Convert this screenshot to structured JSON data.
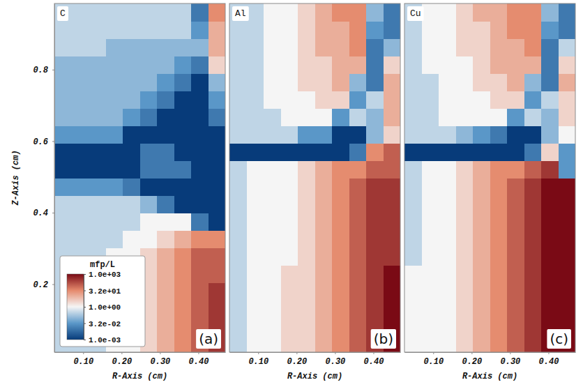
{
  "chart_data": [
    {
      "type": "heatmap",
      "title": "C",
      "panel_label": "(a)",
      "x_label": "R-Axis (cm)",
      "y_label": "Z-Axis (cm)",
      "xlim": [
        0.025,
        0.47
      ],
      "ylim": [
        0.01,
        0.985
      ],
      "xticks": [
        {
          "value": 0.1,
          "label": "0.10"
        },
        {
          "value": 0.2,
          "label": "0.20"
        },
        {
          "value": 0.3,
          "label": "0.30"
        },
        {
          "value": 0.4,
          "label": "0.40"
        }
      ],
      "yticks": [
        0.2,
        0.4,
        0.6,
        0.8
      ],
      "x_edges": [
        0.025,
        0.0695,
        0.114,
        0.1585,
        0.203,
        0.2475,
        0.292,
        0.3365,
        0.381,
        0.4255,
        0.47
      ],
      "y_edges": [
        0.01,
        0.05875,
        0.1075,
        0.15625,
        0.205,
        0.25375,
        0.3025,
        0.35125,
        0.4,
        0.44875,
        0.4975,
        0.54625,
        0.595,
        0.64375,
        0.6925,
        0.74125,
        0.79,
        0.83875,
        0.8875,
        0.93625,
        0.985
      ],
      "cells": [
        [
          0.3,
          0.3,
          0.3,
          1,
          1,
          3,
          10,
          30,
          100,
          300
        ],
        [
          0.3,
          0.3,
          0.3,
          1,
          1,
          3,
          10,
          30,
          100,
          300
        ],
        [
          0.3,
          0.3,
          0.3,
          1,
          1,
          3,
          10,
          30,
          100,
          300
        ],
        [
          0.3,
          0.3,
          0.3,
          1,
          1,
          3,
          10,
          30,
          100,
          300
        ],
        [
          0.3,
          0.3,
          0.3,
          1,
          1,
          3,
          10,
          30,
          100,
          100
        ],
        [
          0.3,
          0.3,
          0.3,
          1,
          1,
          3,
          10,
          30,
          100,
          100
        ],
        [
          0.3,
          0.3,
          0.3,
          0.3,
          1,
          1,
          3,
          10,
          30,
          30
        ],
        [
          0.3,
          0.3,
          0.3,
          0.3,
          0.3,
          1,
          1,
          1,
          0.01,
          0.001
        ],
        [
          0.3,
          0.3,
          0.3,
          0.3,
          0.3,
          0.1,
          0.01,
          0.001,
          0.001,
          0.001
        ],
        [
          0.03,
          0.03,
          0.03,
          0.03,
          0.01,
          0.001,
          0.001,
          0.001,
          0.001,
          0.001
        ],
        [
          0.001,
          0.001,
          0.001,
          0.001,
          0.001,
          0.01,
          0.01,
          0.01,
          0.001,
          0.001
        ],
        [
          0.001,
          0.001,
          0.001,
          0.001,
          0.001,
          0.01,
          0.01,
          0.001,
          0.001,
          0.001
        ],
        [
          0.03,
          0.03,
          0.03,
          0.03,
          0.001,
          0.001,
          0.001,
          0.001,
          0.001,
          0.001
        ],
        [
          0.1,
          0.1,
          0.1,
          0.1,
          0.03,
          0.01,
          0.001,
          0.001,
          0.001,
          0.01
        ],
        [
          0.1,
          0.1,
          0.1,
          0.1,
          0.1,
          0.03,
          0.01,
          0.001,
          0.001,
          0.03
        ],
        [
          0.1,
          0.1,
          0.1,
          0.1,
          0.1,
          0.1,
          0.03,
          0.01,
          0.001,
          0.1
        ],
        [
          0.1,
          0.1,
          0.1,
          0.1,
          0.1,
          0.1,
          0.1,
          0.03,
          0.01,
          3
        ],
        [
          0.3,
          0.3,
          0.3,
          0.1,
          0.1,
          0.1,
          0.1,
          0.1,
          0.1,
          10
        ],
        [
          0.3,
          0.3,
          0.3,
          0.3,
          0.3,
          0.3,
          0.3,
          0.3,
          0.03,
          10
        ],
        [
          0.3,
          0.3,
          0.3,
          0.3,
          0.3,
          0.3,
          0.3,
          0.3,
          0.01,
          30
        ]
      ],
      "colorbar": {
        "title": "mfp/L",
        "range": [
          0.001,
          1000
        ],
        "log": true,
        "ticks": [
          {
            "value": 1000,
            "label": "1.0e+03"
          },
          {
            "value": 31.62,
            "label": "3.2e+01"
          },
          {
            "value": 1,
            "label": "1.0e+00"
          },
          {
            "value": 0.03162,
            "label": "3.2e-02"
          },
          {
            "value": 0.001,
            "label": "1.0e-03"
          }
        ]
      }
    },
    {
      "type": "heatmap",
      "title": "Al",
      "panel_label": "(b)",
      "x_label": "R-Axis (cm)",
      "tick_labels": "x",
      "xlim": [
        0.025,
        0.47
      ],
      "ylim": [
        0.01,
        0.985
      ],
      "xticks": [
        {
          "value": 0.1,
          "label": "0.10"
        },
        {
          "value": 0.2,
          "label": "0.20"
        },
        {
          "value": 0.3,
          "label": "0.30"
        },
        {
          "value": 0.4,
          "label": "0.40"
        }
      ],
      "x_edges": [
        0.025,
        0.0695,
        0.114,
        0.1585,
        0.203,
        0.2475,
        0.292,
        0.3365,
        0.381,
        0.4255,
        0.47
      ],
      "y_edges": [
        0.01,
        0.05875,
        0.1075,
        0.15625,
        0.205,
        0.25375,
        0.3025,
        0.35125,
        0.4,
        0.44875,
        0.4975,
        0.54625,
        0.595,
        0.64375,
        0.6925,
        0.74125,
        0.79,
        0.83875,
        0.8875,
        0.93625,
        0.985
      ],
      "cells": [
        [
          0.3,
          1,
          1,
          3,
          3,
          10,
          30,
          100,
          300,
          1000
        ],
        [
          0.3,
          1,
          1,
          3,
          3,
          10,
          30,
          100,
          300,
          1000
        ],
        [
          0.3,
          1,
          1,
          3,
          3,
          10,
          30,
          100,
          300,
          1000
        ],
        [
          0.3,
          1,
          1,
          3,
          3,
          10,
          30,
          100,
          300,
          1000
        ],
        [
          0.3,
          1,
          1,
          3,
          3,
          10,
          30,
          100,
          300,
          1000
        ],
        [
          0.3,
          1,
          1,
          1,
          3,
          10,
          30,
          100,
          300,
          300
        ],
        [
          0.3,
          1,
          1,
          1,
          3,
          10,
          30,
          100,
          300,
          300
        ],
        [
          0.3,
          1,
          1,
          1,
          3,
          10,
          30,
          100,
          300,
          300
        ],
        [
          0.3,
          1,
          1,
          1,
          3,
          10,
          30,
          100,
          300,
          300
        ],
        [
          0.3,
          1,
          1,
          1,
          3,
          10,
          30,
          100,
          300,
          300
        ],
        [
          0.3,
          1,
          1,
          1,
          3,
          10,
          30,
          30,
          100,
          100
        ],
        [
          0.001,
          0.001,
          0.001,
          0.001,
          0.001,
          0.001,
          0.001,
          0.01,
          30,
          100
        ],
        [
          0.3,
          0.3,
          0.3,
          0.3,
          0.03,
          0.03,
          0.001,
          0.001,
          0.1,
          3
        ],
        [
          0.3,
          0.3,
          0.3,
          1,
          1,
          1,
          0.03,
          0.3,
          0.1,
          10
        ],
        [
          0.3,
          0.3,
          1,
          1,
          1,
          3,
          3,
          0.03,
          0.3,
          10
        ],
        [
          0.3,
          0.3,
          1,
          1,
          3,
          3,
          10,
          0.1,
          0.01,
          10
        ],
        [
          0.3,
          0.3,
          1,
          1,
          3,
          3,
          10,
          10,
          0.01,
          3
        ],
        [
          0.3,
          0.3,
          1,
          1,
          3,
          10,
          10,
          30,
          0.01,
          0.1
        ],
        [
          0.3,
          0.3,
          1,
          1,
          3,
          10,
          10,
          30,
          0.03,
          0.01
        ],
        [
          0.3,
          0.3,
          1,
          1,
          3,
          10,
          30,
          30,
          0.1,
          0.01
        ]
      ]
    },
    {
      "type": "heatmap",
      "title": "Cu",
      "panel_label": "(c)",
      "x_label": "R-Axis (cm)",
      "tick_labels": "x",
      "xlim": [
        0.025,
        0.47
      ],
      "ylim": [
        0.01,
        0.985
      ],
      "xticks": [
        {
          "value": 0.1,
          "label": "0.10"
        },
        {
          "value": 0.2,
          "label": "0.20"
        },
        {
          "value": 0.3,
          "label": "0.30"
        },
        {
          "value": 0.4,
          "label": "0.40"
        }
      ],
      "x_edges": [
        0.025,
        0.0695,
        0.114,
        0.1585,
        0.203,
        0.2475,
        0.292,
        0.3365,
        0.381,
        0.4255,
        0.47
      ],
      "y_edges": [
        0.01,
        0.05875,
        0.1075,
        0.15625,
        0.205,
        0.25375,
        0.3025,
        0.35125,
        0.4,
        0.44875,
        0.4975,
        0.54625,
        0.595,
        0.64375,
        0.6925,
        0.74125,
        0.79,
        0.83875,
        0.8875,
        0.93625,
        0.985
      ],
      "cells": [
        [
          1,
          1,
          1,
          3,
          10,
          30,
          100,
          300,
          1000,
          1000
        ],
        [
          1,
          1,
          1,
          3,
          10,
          30,
          100,
          300,
          1000,
          1000
        ],
        [
          1,
          1,
          1,
          3,
          10,
          30,
          100,
          300,
          1000,
          1000
        ],
        [
          1,
          1,
          1,
          3,
          10,
          30,
          100,
          300,
          1000,
          1000
        ],
        [
          1,
          1,
          1,
          3,
          10,
          30,
          100,
          300,
          1000,
          1000
        ],
        [
          0.3,
          1,
          1,
          3,
          10,
          30,
          100,
          300,
          1000,
          1000
        ],
        [
          0.3,
          1,
          1,
          3,
          10,
          30,
          100,
          300,
          1000,
          1000
        ],
        [
          0.3,
          1,
          1,
          3,
          10,
          30,
          100,
          300,
          1000,
          1000
        ],
        [
          0.3,
          1,
          1,
          3,
          10,
          30,
          100,
          300,
          1000,
          1000
        ],
        [
          0.3,
          1,
          1,
          3,
          10,
          30,
          100,
          300,
          1000,
          1000
        ],
        [
          0.3,
          1,
          1,
          3,
          10,
          30,
          30,
          100,
          300,
          0.03
        ],
        [
          0.001,
          0.001,
          0.001,
          0.001,
          0.001,
          0.001,
          0.001,
          0.01,
          3,
          0.03
        ],
        [
          0.3,
          0.3,
          0.3,
          0.1,
          0.03,
          0.01,
          0.001,
          0.001,
          0.1,
          1
        ],
        [
          0.3,
          0.3,
          1,
          1,
          1,
          1,
          0.03,
          0.3,
          0.1,
          3
        ],
        [
          0.3,
          0.3,
          1,
          1,
          1,
          3,
          3,
          0.03,
          0.3,
          3
        ],
        [
          0.3,
          0.3,
          1,
          1,
          3,
          3,
          10,
          0.1,
          0.01,
          10
        ],
        [
          0.3,
          1,
          1,
          1,
          3,
          10,
          10,
          10,
          0.01,
          3
        ],
        [
          0.3,
          1,
          1,
          3,
          3,
          10,
          10,
          30,
          0.01,
          0.3
        ],
        [
          0.3,
          1,
          1,
          3,
          3,
          10,
          30,
          30,
          0.03,
          0.01
        ],
        [
          0.3,
          1,
          1,
          3,
          10,
          10,
          30,
          30,
          0.1,
          0.01
        ]
      ]
    }
  ]
}
